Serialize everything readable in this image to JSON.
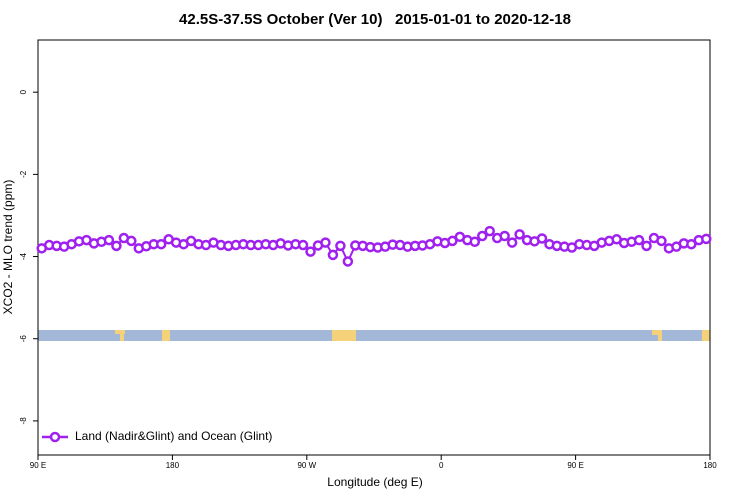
{
  "chart_data": {
    "type": "line",
    "title": "42.5S-37.5S October (Ver 10)   2015-01-01 to 2020-12-18",
    "x_label": "Longitude (deg E)",
    "y_label": "XCO2 - MLO trend (ppm)",
    "xlim": [
      90,
      540
    ],
    "xticks": [
      {
        "value": 90,
        "label": "90 E"
      },
      180,
      {
        "value": 270,
        "label": "90 W"
      },
      {
        "value": 360,
        "label": "0"
      },
      {
        "value": 450,
        "label": "90 E"
      },
      {
        "value": 540,
        "label": "180"
      }
    ],
    "ylim": [
      -8.83,
      1.27
    ],
    "yticks": [
      0,
      -2,
      -4,
      -6,
      -8
    ],
    "legend": "bottom-left",
    "x": [
      92.5,
      97.5,
      102.5,
      107.5,
      112.5,
      117.5,
      122.5,
      127.5,
      132.5,
      137.5,
      142.5,
      147.5,
      152.5,
      157.5,
      162.5,
      167.5,
      172.5,
      177.5,
      182.5,
      187.5,
      192.5,
      197.5,
      202.5,
      207.5,
      212.5,
      217.5,
      222.5,
      227.5,
      232.5,
      237.5,
      242.5,
      247.5,
      252.5,
      257.5,
      262.5,
      267.5,
      272.5,
      277.5,
      282.5,
      287.5,
      292.5,
      297.5,
      302.5,
      307.5,
      312.5,
      317.5,
      322.5,
      327.5,
      332.5,
      337.5,
      342.5,
      347.5,
      352.5,
      357.5,
      362.5,
      367.5,
      372.5,
      377.5,
      382.5,
      387.5,
      392.5,
      397.5,
      402.5,
      407.5,
      412.5,
      417.5,
      422.5,
      427.5,
      432.5,
      437.5,
      442.5,
      447.5,
      452.5,
      457.5,
      462.5,
      467.5,
      472.5,
      477.5,
      482.5,
      487.5,
      492.5,
      497.5,
      502.5,
      507.5,
      512.5,
      517.5,
      522.5,
      527.5,
      532.5,
      537.5
    ],
    "series": [
      {
        "name": "Land (Nadir&Glint) and Ocean (Glint)",
        "color": "#a020f0",
        "values": [
          -3.8,
          -3.72,
          -3.74,
          -3.76,
          -3.7,
          -3.63,
          -3.6,
          -3.68,
          -3.64,
          -3.6,
          -3.74,
          -3.55,
          -3.62,
          -3.8,
          -3.75,
          -3.7,
          -3.7,
          -3.58,
          -3.66,
          -3.7,
          -3.62,
          -3.7,
          -3.72,
          -3.66,
          -3.72,
          -3.74,
          -3.72,
          -3.7,
          -3.72,
          -3.72,
          -3.7,
          -3.72,
          -3.68,
          -3.73,
          -3.7,
          -3.72,
          -3.88,
          -3.73,
          -3.66,
          -3.96,
          -3.74,
          -4.12,
          -3.73,
          -3.74,
          -3.77,
          -3.78,
          -3.76,
          -3.71,
          -3.72,
          -3.76,
          -3.74,
          -3.73,
          -3.7,
          -3.63,
          -3.67,
          -3.62,
          -3.52,
          -3.6,
          -3.64,
          -3.5,
          -3.38,
          -3.55,
          -3.5,
          -3.66,
          -3.46,
          -3.6,
          -3.63,
          -3.56,
          -3.7,
          -3.74,
          -3.76,
          -3.78,
          -3.7,
          -3.72,
          -3.74,
          -3.66,
          -3.62,
          -3.58,
          -3.67,
          -3.64,
          -3.6,
          -3.74,
          -3.55,
          -3.62,
          -3.8,
          -3.76,
          -3.68,
          -3.7,
          -3.6,
          -3.57
        ]
      }
    ]
  }
}
